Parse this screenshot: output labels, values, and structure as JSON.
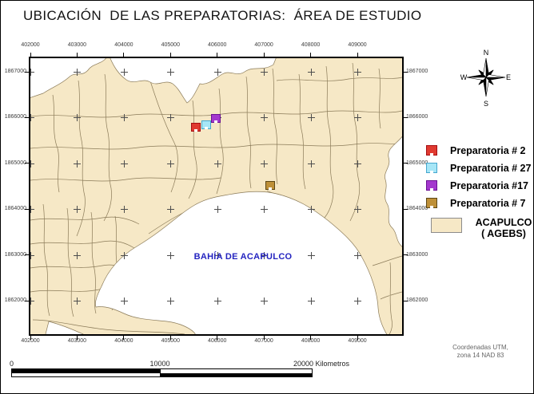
{
  "title": "UBICACIÓN  DE LAS PREPARATORIAS:  ÁREA DE ESTUDIO",
  "colors": {
    "land": "#F6E8C6",
    "land_outline": "#8A7A58",
    "bay_text": "#2424C0",
    "frame": "#000000"
  },
  "map": {
    "x_ticks": [
      "402000",
      "403000",
      "404000",
      "405000",
      "406000",
      "407000",
      "408000",
      "409000"
    ],
    "y_ticks": [
      "1867000",
      "1866000",
      "1865000",
      "1864000",
      "1863000",
      "1862000"
    ],
    "bay_label": "BAHÍA DE ACAPULCO"
  },
  "legend": {
    "items": [
      {
        "label": "Preparatoria # 2",
        "fill": "#E03A30",
        "border": "#A50D12"
      },
      {
        "label": "Preparatoria # 27",
        "fill": "#A6E6F7",
        "border": "#45A6CE"
      },
      {
        "label": "Preparatoria #17",
        "fill": "#A438CE",
        "border": "#6A1192"
      },
      {
        "label": "Preparatoria # 7",
        "fill": "#BE9038",
        "border": "#5C4716"
      }
    ],
    "area": {
      "line1": "ACAPULCO",
      "line2": "( AGEBS)"
    }
  },
  "compass": {
    "north": "N",
    "south": "S",
    "east": "E",
    "west": "W"
  },
  "scale_bar": {
    "zero": "0",
    "mid": "10000",
    "end": "20000 Kilometros"
  },
  "footnote": {
    "line1": "Coordenadas UTM,",
    "line2": "zona 14 NAD 83"
  }
}
